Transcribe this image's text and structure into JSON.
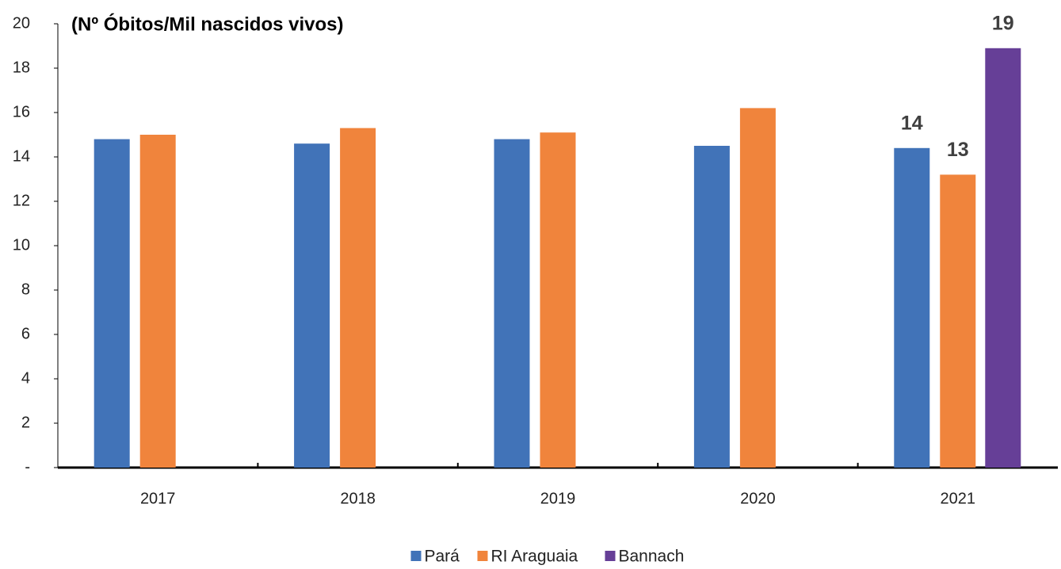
{
  "chart_data": {
    "type": "bar",
    "title": "(Nº Óbitos/Mil nascidos vivos)",
    "categories": [
      "2017",
      "2018",
      "2019",
      "2020",
      "2021"
    ],
    "series": [
      {
        "name": "Pará",
        "color": "#4173b8",
        "values": [
          14.8,
          14.6,
          14.8,
          14.5,
          14.4
        ],
        "value_labels": [
          null,
          null,
          null,
          null,
          "14"
        ]
      },
      {
        "name": "RI Araguaia",
        "color": "#f0843c",
        "values": [
          15.0,
          15.3,
          15.1,
          16.2,
          13.2
        ],
        "value_labels": [
          null,
          null,
          null,
          null,
          "13"
        ]
      },
      {
        "name": "Bannach",
        "color": "#663f97",
        "values": [
          null,
          null,
          null,
          null,
          18.9
        ],
        "value_labels": [
          null,
          null,
          null,
          null,
          "19"
        ]
      }
    ],
    "ylim": [
      0,
      20
    ],
    "yticks": [
      {
        "value": 0,
        "label": "-"
      },
      2,
      4,
      6,
      8,
      10,
      12,
      14,
      16,
      18,
      20
    ],
    "grid": false,
    "legend": "bottom"
  }
}
